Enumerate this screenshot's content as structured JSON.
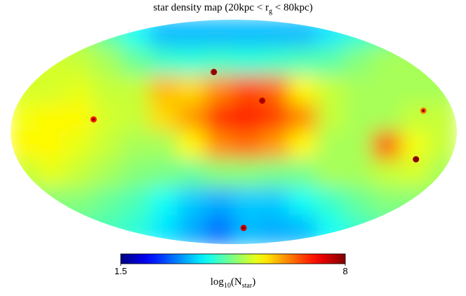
{
  "chart_data": {
    "type": "skymap",
    "title": [
      "star density map (20kpc < r",
      "g",
      " < 80kpc)"
    ],
    "colorbar_label": [
      "log",
      "10",
      "(N",
      "star",
      ")"
    ],
    "colormap": "jet",
    "clim": [
      1.5,
      8
    ],
    "cticks": [
      1.5,
      8
    ],
    "grid_values": [
      [
        5,
        5,
        5,
        4.5,
        4,
        3.5,
        3.5,
        3.5,
        3.5,
        3.5,
        3.5,
        3.8,
        4.2,
        4.5,
        5,
        5
      ],
      [
        5.3,
        5.3,
        5.2,
        5,
        4.6,
        4.3,
        4.2,
        4.3,
        4.2,
        4.3,
        4.4,
        4.5,
        4.8,
        5,
        5,
        5
      ],
      [
        5.3,
        5.3,
        5.4,
        5.2,
        5.2,
        6,
        5.8,
        6.3,
        6.7,
        6.5,
        5.6,
        5.2,
        5,
        5,
        5,
        5
      ],
      [
        5.5,
        5.6,
        5.6,
        5.3,
        5.2,
        5.8,
        6.2,
        6.9,
        7,
        6.8,
        6.3,
        5.2,
        5,
        5,
        5.2,
        5.2
      ],
      [
        5.6,
        5.6,
        5.4,
        5.2,
        5,
        5,
        5.6,
        6.3,
        6.5,
        6.2,
        5.6,
        5,
        5,
        6.7,
        5.5,
        5.2
      ],
      [
        5.2,
        5.4,
        5.2,
        5,
        4.8,
        4.7,
        4.6,
        4.8,
        4.8,
        4.7,
        4.7,
        5,
        5,
        5.2,
        5.3,
        5
      ],
      [
        4.8,
        4.8,
        4.8,
        4.6,
        4.4,
        4,
        3.6,
        3.4,
        3.6,
        3.6,
        4,
        4.3,
        4.6,
        4.8,
        4.8,
        4.8
      ],
      [
        4.5,
        4.5,
        4.5,
        4.4,
        4.2,
        3.8,
        3.4,
        3,
        3.5,
        3.4,
        3.5,
        4,
        4.3,
        4.5,
        4.5,
        4.5
      ]
    ],
    "sources": [
      {
        "lon": 16,
        "lat": 48,
        "value": 7.8
      },
      {
        "lon": -23,
        "lat": 25,
        "value": 7.6
      },
      {
        "lon": -8,
        "lat": -77,
        "value": 7.5
      },
      {
        "lon": -147,
        "lat": -22,
        "value": 7.9
      },
      {
        "lon": 113,
        "lat": 10,
        "value": 7
      },
      {
        "lon": -153,
        "lat": 17,
        "value": 6.5
      }
    ]
  }
}
